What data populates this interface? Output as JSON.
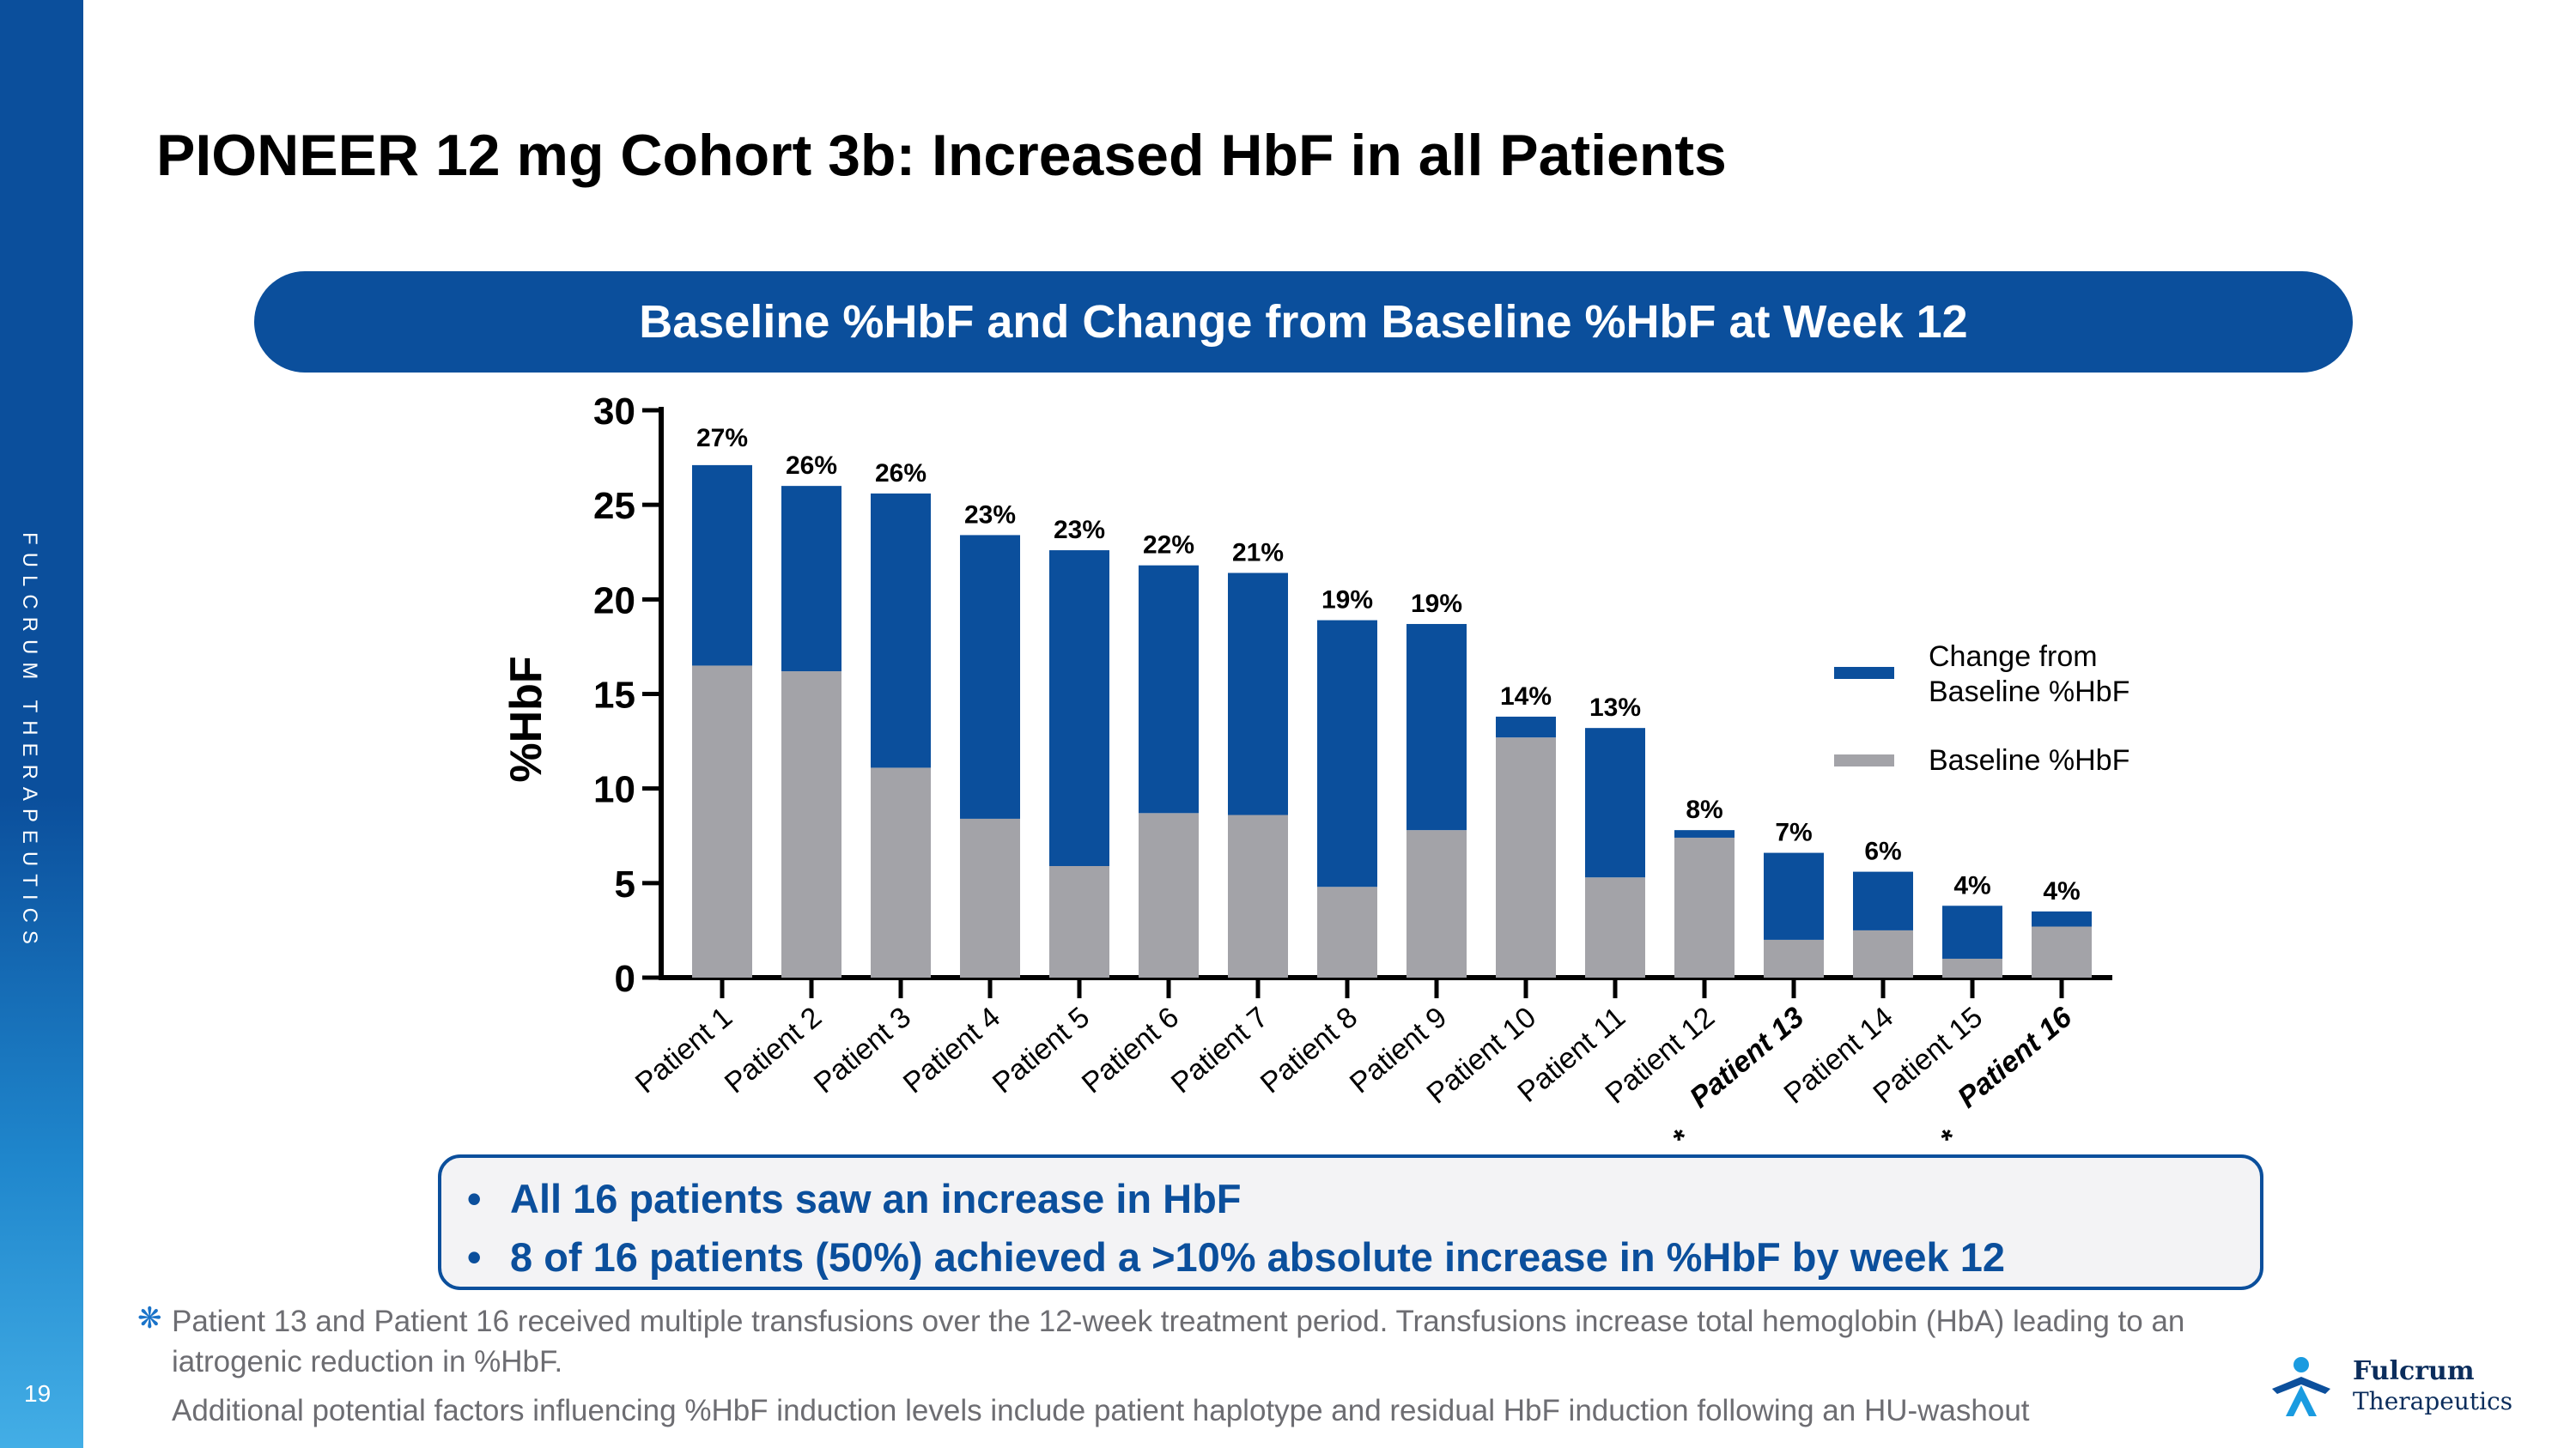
{
  "sidebar": {
    "brand": "FULCRUM THERAPEUTICS",
    "page_number": "19"
  },
  "title": "PIONEER 12 mg Cohort 3b: Increased HbF in all Patients",
  "banner": "Baseline %HbF and Change from Baseline %HbF at Week 12",
  "colors": {
    "brand_blue": "#0b4f9c",
    "baseline_gray": "#a3a3a8",
    "footnote_gray": "#6d6d72"
  },
  "chart_data": {
    "type": "bar",
    "stacked": true,
    "ylabel": "%HbF",
    "xlabel": "",
    "ylim": [
      0,
      30
    ],
    "yticks": [
      "0",
      "5",
      "10",
      "15",
      "20",
      "25",
      "30"
    ],
    "categories": [
      "Patient 1",
      "Patient 2",
      "Patient 3",
      "Patient 4",
      "Patient 5",
      "Patient 6",
      "Patient 7",
      "Patient 8",
      "Patient 9",
      "Patient 10",
      "Patient 11",
      "Patient 12",
      "Patient 13",
      "Patient 14",
      "Patient 15",
      "Patient 16"
    ],
    "starred_categories": [
      "Patient 13",
      "Patient 16"
    ],
    "star_marker": "*",
    "series": [
      {
        "name": "Baseline %HbF",
        "color": "#a3a3a8",
        "values": [
          16.5,
          16.2,
          11.1,
          8.4,
          5.9,
          8.7,
          8.6,
          4.8,
          7.8,
          12.7,
          5.3,
          7.4,
          2.0,
          2.5,
          1.0,
          2.7
        ]
      },
      {
        "name": "Change from Baseline %HbF",
        "color": "#0b4f9c",
        "values": [
          10.6,
          9.8,
          14.5,
          15.0,
          16.7,
          13.1,
          12.8,
          14.1,
          10.9,
          1.1,
          7.9,
          0.4,
          4.6,
          3.1,
          2.8,
          0.8
        ]
      }
    ],
    "data_labels": [
      "27%",
      "26%",
      "26%",
      "23%",
      "23%",
      "22%",
      "21%",
      "19%",
      "19%",
      "14%",
      "13%",
      "8%",
      "7%",
      "6%",
      "4%",
      "4%"
    ],
    "legend": {
      "position": "right",
      "items": [
        "Change from Baseline %HbF",
        "Baseline %HbF"
      ],
      "line1": "Change from",
      "line2": "Baseline %HbF",
      "baseline_label": "Baseline %HbF"
    }
  },
  "summary": {
    "bullet_char": "•",
    "bullets": [
      "All 16 patients saw an increase in HbF",
      "8 of 16 patients (50%) achieved a >10% absolute increase in %HbF by week 12"
    ]
  },
  "footnote": {
    "marker": "❋",
    "line1": "Patient 13 and Patient 16 received multiple transfusions over the 12-week treatment period. Transfusions increase total hemoglobin (HbA) leading to an iatrogenic reduction in %HbF.",
    "line2": "Additional potential factors influencing %HbF induction levels include patient haplotype and residual HbF induction following an HU-washout"
  },
  "logo": {
    "name": "Fulcrum",
    "subtitle": "Therapeutics"
  }
}
